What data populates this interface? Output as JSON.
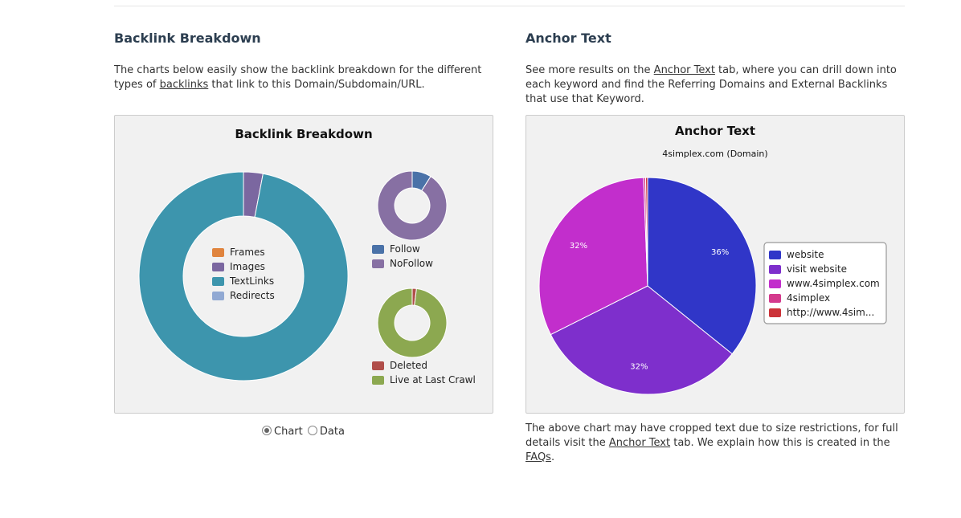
{
  "left": {
    "heading": "Backlink Breakdown",
    "desc_pre": "The charts below easily show the backlink breakdown for the different types of ",
    "desc_link": "backlinks",
    "desc_post": " that link to this Domain/Subdomain/URL.",
    "toggle": {
      "chart_label": "Chart",
      "data_label": "Data",
      "selected": "Chart"
    }
  },
  "right": {
    "heading": "Anchor Text",
    "desc_pre": "See more results on the ",
    "desc_link": "Anchor Text",
    "desc_post": " tab, where you can drill down into each keyword and find the Referring Domains and External Backlinks that use that Keyword.",
    "foot_pre": "The above chart may have cropped text due to size restrictions, for full details visit the ",
    "foot_link1": "Anchor Text",
    "foot_mid": " tab. We explain how this is created in the ",
    "foot_link2": "FAQs",
    "foot_post": "."
  },
  "chart_data": [
    {
      "type": "pie",
      "title": "Backlink Breakdown",
      "labels": [
        "Frames",
        "Images",
        "TextLinks",
        "Redirects"
      ],
      "values": [
        0,
        3,
        97,
        0
      ],
      "colors": [
        "#e0843e",
        "#7b67a0",
        "#3d95ad",
        "#91a9d3"
      ]
    },
    {
      "type": "pie",
      "title": "",
      "labels": [
        "Follow",
        "NoFollow"
      ],
      "values": [
        9,
        91
      ],
      "colors": [
        "#4a72a8",
        "#8770a3"
      ]
    },
    {
      "type": "pie",
      "title": "",
      "labels": [
        "Deleted",
        "Live at Last Crawl"
      ],
      "values": [
        2,
        98
      ],
      "colors": [
        "#b04e4a",
        "#8ca850"
      ]
    },
    {
      "type": "pie",
      "title": "Anchor Text",
      "subtitle": "4simplex.com (Domain)",
      "labels": [
        "website",
        "visit website",
        "www.4simplex.com",
        "4simplex",
        "http://www.4sim..."
      ],
      "values": [
        36,
        32,
        32,
        0.3,
        0.3
      ],
      "value_labels": [
        "36%",
        "32%",
        "32%",
        "",
        ""
      ],
      "colors": [
        "#3036c8",
        "#7e2fcc",
        "#c22ecc",
        "#d43a8d",
        "#cc3339"
      ]
    }
  ]
}
